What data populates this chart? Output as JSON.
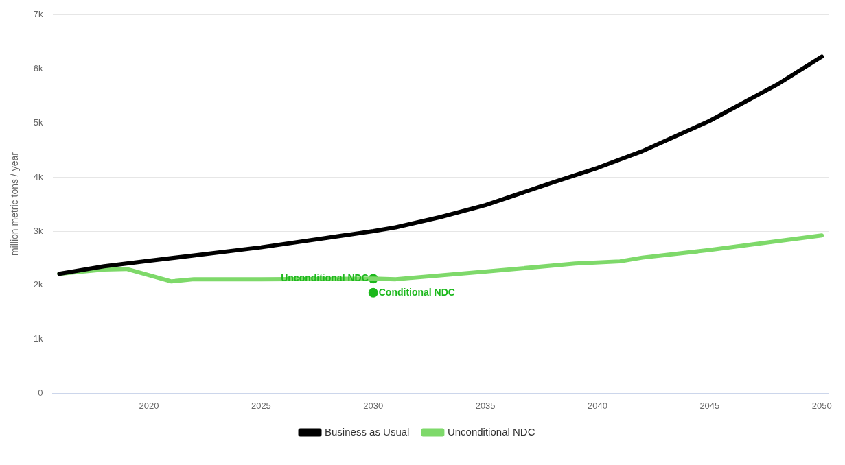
{
  "chart_data": {
    "type": "line",
    "ylabel": "million metric tons / year",
    "xlim": [
      2015.7,
      2050.3
    ],
    "xticks": [
      2020,
      2025,
      2030,
      2035,
      2040,
      2045,
      2050
    ],
    "ylim": [
      0,
      7000
    ],
    "yticks": [
      0,
      {
        "value": 1000,
        "label": "1k"
      },
      {
        "value": 2000,
        "label": "2k"
      },
      {
        "value": 3000,
        "label": "3k"
      },
      {
        "value": 4000,
        "label": "4k"
      },
      {
        "value": 5000,
        "label": "5k"
      },
      {
        "value": 6000,
        "label": "6k"
      },
      {
        "value": 7000,
        "label": "7k"
      }
    ],
    "grid": "y",
    "legend": "bottom",
    "marker": "none",
    "line_style": "solid",
    "series": [
      {
        "name": "Business as Usual",
        "color": "#000000",
        "x": [
          2016,
          2018,
          2020,
          2022,
          2025,
          2028,
          2030,
          2031,
          2033,
          2035,
          2038,
          2040,
          2042,
          2045,
          2048,
          2050
        ],
        "values": [
          2210,
          2350,
          2450,
          2550,
          2700,
          2880,
          3000,
          3070,
          3260,
          3480,
          3900,
          4170,
          4480,
          5040,
          5710,
          6230
        ]
      },
      {
        "name": "Unconditional NDC",
        "color": "#7ed96a",
        "x": [
          2016,
          2018,
          2019,
          2021,
          2022,
          2023,
          2025,
          2030,
          2031,
          2035,
          2039,
          2041,
          2042,
          2045,
          2050
        ],
        "values": [
          2210,
          2290,
          2300,
          2070,
          2110,
          2110,
          2110,
          2120,
          2110,
          2250,
          2400,
          2440,
          2510,
          2650,
          2920
        ]
      },
      {
        "name": "Unconditional NDC",
        "type": "scatter",
        "marker": "circle",
        "color": "#1cb81c",
        "x": [
          2030
        ],
        "values": [
          2120
        ]
      },
      {
        "name": "Conditional NDC",
        "type": "scatter",
        "marker": "circle",
        "color": "#1cb81c",
        "x": [
          2030
        ],
        "values": [
          1860
        ]
      }
    ]
  }
}
